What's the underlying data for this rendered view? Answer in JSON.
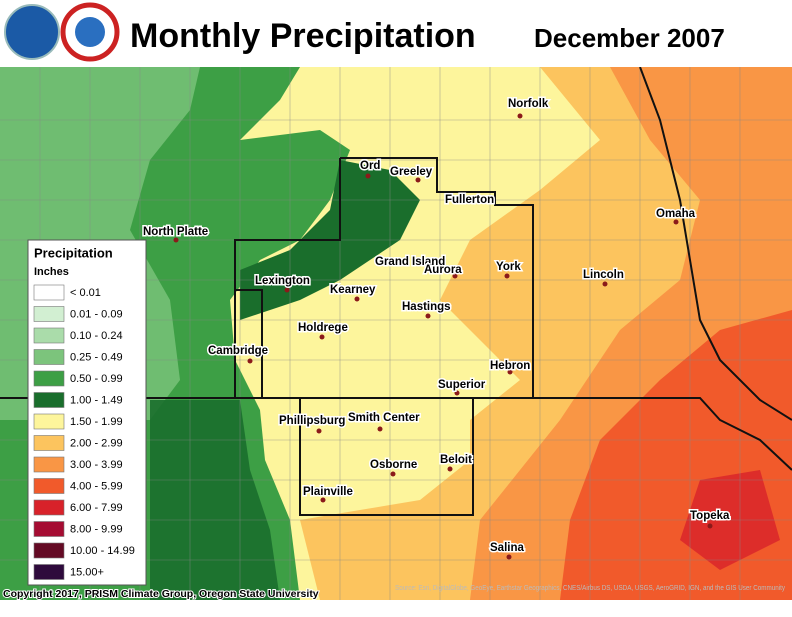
{
  "header": {
    "title": "Monthly Precipitation",
    "date": "December 2007"
  },
  "legend": {
    "title": "Precipitation",
    "units": "Inches",
    "items": [
      {
        "label": "< 0.01",
        "color": "#ffffff"
      },
      {
        "label": "0.01 - 0.09",
        "color": "#d2efd2"
      },
      {
        "label": "0.10 - 0.24",
        "color": "#aadcaa"
      },
      {
        "label": "0.25 - 0.49",
        "color": "#7cc47c"
      },
      {
        "label": "0.50 - 0.99",
        "color": "#3d9f45"
      },
      {
        "label": "1.00 - 1.49",
        "color": "#1a6e2c"
      },
      {
        "label": "1.50 - 1.99",
        "color": "#fdf59c"
      },
      {
        "label": "2.00 - 2.99",
        "color": "#fcc45e"
      },
      {
        "label": "3.00 - 3.99",
        "color": "#f99645"
      },
      {
        "label": "4.00 - 5.99",
        "color": "#f15a2b"
      },
      {
        "label": "6.00 - 7.99",
        "color": "#d8222a"
      },
      {
        "label": "8.00 - 9.99",
        "color": "#a50c32"
      },
      {
        "label": "10.00 - 14.99",
        "color": "#640a24"
      },
      {
        "label": "15.00+",
        "color": "#2e0a3c"
      }
    ]
  },
  "cities": [
    "North Platte",
    "Ord",
    "Greeley",
    "Fullerton",
    "Norfolk",
    "Grand Island",
    "Aurora",
    "York",
    "Lincoln",
    "Omaha",
    "Lexington",
    "Kearney",
    "Hastings",
    "Holdrege",
    "Cambridge",
    "Hebron",
    "Superior",
    "Phillipsburg",
    "Smith Center",
    "Beloit",
    "Osborne",
    "Plainville",
    "Topeka",
    "Salina"
  ],
  "credits": {
    "copyright": "Copyright 2017, PRISM Climate Group, Oregon State University",
    "source": "Source: Esri, DigitalGlobe, GeoEye, Earthstar Geographics, CNES/Airbus DS, USDA, USGS, AeroGRID, IGN, and the GIS User Community"
  }
}
